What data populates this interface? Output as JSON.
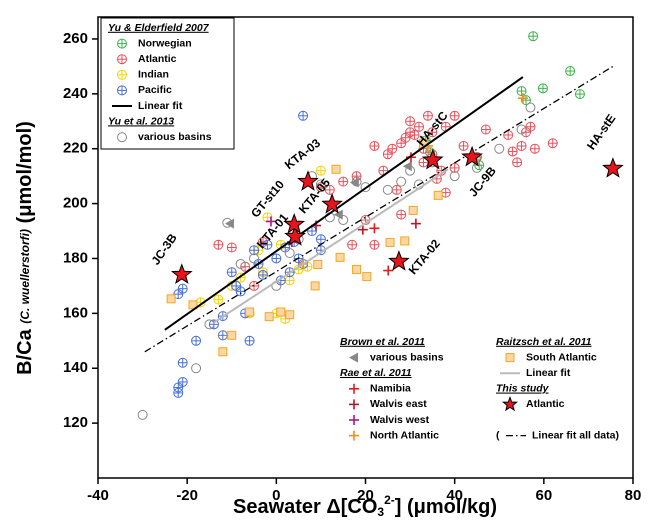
{
  "chart_data": {
    "type": "scatter",
    "xlabel": [
      "Seawater Δ[CO",
      "3",
      "2-",
      "] (μmol/kg)"
    ],
    "ylabel": [
      "B/Ca",
      "(C. wuellerstorfi)",
      "(μmol/mol)"
    ],
    "xlim": [
      -40,
      80
    ],
    "xticks": [
      -40,
      -20,
      0,
      20,
      40,
      60,
      80
    ],
    "ylim": [
      100,
      268
    ],
    "yticks": [
      120,
      140,
      160,
      180,
      200,
      220,
      240,
      260
    ],
    "groups": [
      {
        "title": "Yu & Elderfield 2007",
        "legend": "upper left",
        "series": [
          {
            "name": "Norwegian",
            "color": "#3cb44b",
            "marker": "circleplus",
            "x": [
              57.6,
              65.9,
              68.1,
              56,
              59.8,
              44.8,
              34.5,
              45.5,
              33.5,
              55
            ],
            "y": [
              261,
              248.3,
              239.9,
              237.7,
              242,
              216.2,
              218.7,
              214,
              223,
              241
            ]
          },
          {
            "name": "Atlantic",
            "color": "#e8505b",
            "marker": "circleplus",
            "x": [
              -13,
              -7,
              -3,
              -5,
              10,
              12,
              15,
              18,
              20,
              22,
              24,
              25,
              26,
              27,
              28,
              29,
              30,
              30,
              31,
              32,
              33,
              33,
              34,
              35,
              35,
              36,
              37,
              38,
              38,
              40,
              40,
              42,
              45,
              47,
              52,
              53,
              54,
              55,
              56,
              57,
              58,
              62,
              22,
              17,
              28,
              -10
            ],
            "y": [
              185,
              177,
              186,
              170,
              206,
              205,
              208,
              210,
              194,
              221,
              212,
              218,
              220,
              205,
              222,
              224,
              230,
              226,
              225,
              228,
              220,
              215,
              232,
              226,
              218,
              209,
              212,
              204,
              228,
              213,
              232,
              221,
              217,
              227,
              225,
              219,
              215,
              221,
              226,
              228,
              220,
              222,
              185,
              185,
              196,
              184
            ]
          },
          {
            "name": "Indian",
            "color": "#f5d300",
            "marker": "circleplus",
            "x": [
              -13,
              -10,
              -8,
              -6,
              -4,
              -3,
              0,
              2,
              3,
              5,
              7,
              -17,
              -2,
              10,
              1
            ],
            "y": [
              165,
              170,
              173,
              160,
              183,
              175,
              160,
              158,
              172,
              176,
              177,
              164,
              195,
              212,
              185
            ]
          },
          {
            "name": "Pacific",
            "color": "#4a6fd8",
            "marker": "circleplus",
            "x": [
              -22,
              -22,
              -21,
              -21,
              -22,
              -21,
              -18,
              -12,
              -12,
              -10,
              -8,
              -7,
              -5,
              -4,
              -3,
              -2,
              0,
              1,
              2,
              3,
              4,
              5,
              6,
              8,
              10,
              10,
              6,
              -14,
              -6,
              -9
            ],
            "y": [
              131,
              133,
              135,
              142,
              167,
              169,
              150,
              152,
              159,
              175,
              168,
              160,
              183,
              178,
              174,
              185,
              180,
              172,
              184,
              175,
              186,
              180,
              232,
              190,
              187,
              183,
              178,
              156,
              150,
              170
            ]
          },
          {
            "name": "Linear fit",
            "color": "#000000",
            "marker": "line",
            "x": [
              -25,
              55.3
            ],
            "y": [
              154,
              246.1
            ]
          }
        ]
      },
      {
        "title": "Yu et al. 2013",
        "legend": "upper left",
        "series": [
          {
            "name": "various basins",
            "color": "#888888",
            "marker": "circle",
            "x": [
              -30,
              -18,
              -15,
              -12,
              -8,
              -5,
              0,
              3,
              5,
              8,
              10,
              12,
              15,
              18,
              20,
              25,
              28,
              30,
              32,
              35,
              40,
              45,
              50,
              55,
              57,
              -11
            ],
            "y": [
              123,
              140,
              156,
              152,
              178,
              180,
              170,
              182,
              187,
              210,
              207,
              195,
              194,
              208,
              206,
              205,
              208,
              212,
              207,
              215,
              210,
              213,
              220,
              227,
              235,
              193
            ]
          }
        ]
      },
      {
        "title": "Brown et al. 2011",
        "legend": "lower center",
        "series": [
          {
            "name": "various basins",
            "color": "#888888",
            "marker": "triangle",
            "x": [
              -10.4,
              17.6,
              29.5,
              14
            ],
            "y": [
              192.7,
              207.7,
              213.6,
              196
            ]
          }
        ]
      },
      {
        "title": "Rae et al. 2011",
        "legend": "lower center",
        "series": [
          {
            "name": "Namibia",
            "color": "#e41a1c",
            "marker": "plus",
            "x": [
              30.2,
              25.1,
              22
            ],
            "y": [
              216.9,
              175.6,
              191
            ]
          },
          {
            "name": "Walvis east",
            "color": "#b2182b",
            "marker": "plus",
            "x": [
              8.9,
              31.3,
              19.4
            ],
            "y": [
              192,
              192.7,
              190.5
            ]
          },
          {
            "name": "Walvis west",
            "color": "#b0148c",
            "marker": "plus",
            "x": [
              -1.2,
              3.5
            ],
            "y": [
              193.5,
              186
            ]
          },
          {
            "name": "North Atlantic",
            "color": "#f28c1c",
            "marker": "plus",
            "x": [
              55.3,
              34,
              6
            ],
            "y": [
              238.4,
              221,
              178
            ]
          }
        ]
      },
      {
        "title": "Raitzsch et al. 2011",
        "legend": "lower right",
        "series": [
          {
            "name": "South Atlantic",
            "color": "#f5a623",
            "marker": "square",
            "x": [
              -23.6,
              -18.7,
              -10,
              -1.6,
              -6,
              3,
              9.3,
              14.3,
              20.3,
              25.5,
              28.8,
              30.7,
              36.3,
              8.7,
              13.4,
              18,
              -12,
              1,
              33
            ],
            "y": [
              165.3,
              163.1,
              152,
              158.8,
              160.5,
              159.5,
              177.8,
              180.4,
              173.4,
              185.8,
              186.4,
              197.5,
              203,
              170,
              212.5,
              176,
              146,
              160.5,
              222
            ]
          },
          {
            "name": "Linear fit",
            "color": "#bbbbbb",
            "marker": "line",
            "x": [
              -13.8,
              38.5
            ],
            "y": [
              156.9,
              212.5
            ]
          }
        ]
      },
      {
        "title": "This study",
        "legend": "lower right",
        "series": [
          {
            "name": "Atlantic",
            "color": "#e8141c",
            "marker": "star",
            "x": [
              -21.2,
              4.2,
              4.0,
              12.5,
              7.1,
              27.5,
              35.1,
              43.9,
              75.5
            ],
            "y": [
              174.1,
              188,
              192.4,
              199.7,
              208,
              178.9,
              215.8,
              216.9,
              212.8
            ],
            "point_labels": [
              "JC-3B",
              "KTA-01",
              "GT-st10",
              "KTA-05",
              "KTA-03",
              "KTA-02",
              "HA-stC",
              "JC-9B",
              "HA-stE"
            ]
          }
        ]
      },
      {
        "legend": "lower right",
        "series": [
          {
            "name": "Linear fit all data",
            "legend_open": "(",
            "legend_close": ")",
            "color": "#000000",
            "marker": "line",
            "dash": "7 3 1.5 3",
            "x": [
              -29.5,
              76
            ],
            "y": [
              146,
              250.5
            ]
          }
        ]
      }
    ]
  }
}
